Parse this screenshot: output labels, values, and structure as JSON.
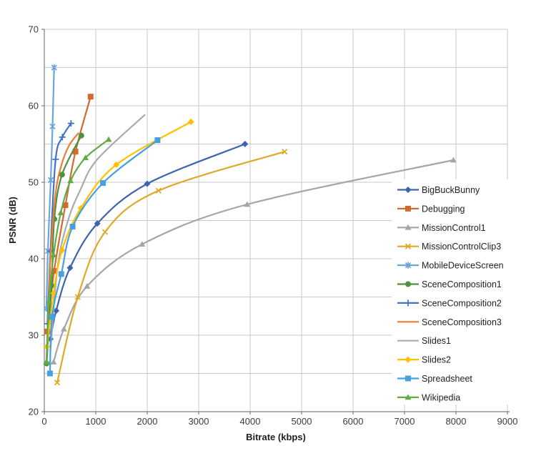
{
  "figure": {
    "background": "#ffffff",
    "grid_color": "#c9c9c9",
    "axis_color": "#7f7f7f",
    "tick_label_color": "#3b3b3b"
  },
  "chart_data": {
    "type": "line",
    "title": "",
    "xlabel": "Bitrate (kbps)",
    "ylabel": "PSNR (dB)",
    "xlim": [
      0,
      9000
    ],
    "ylim": [
      20,
      70
    ],
    "x_ticks": [
      0,
      1000,
      2000,
      3000,
      4000,
      5000,
      6000,
      7000,
      8000,
      9000
    ],
    "y_ticks": [
      20,
      30,
      40,
      50,
      60,
      70
    ],
    "x_grid_step": 1000,
    "y_grid_step": 5,
    "grid": true,
    "legend_position": "inside-right",
    "series": [
      {
        "name": "BigBuckBunny",
        "color": "#3C64AE",
        "marker": "diamond",
        "points": [
          [
            120,
            29.5
          ],
          [
            230,
            33.2
          ],
          [
            500,
            38.8
          ],
          [
            1030,
            44.6
          ],
          [
            2000,
            49.8
          ],
          [
            3900,
            55.0
          ]
        ]
      },
      {
        "name": "Debugging",
        "color": "#D2692E",
        "marker": "square",
        "points": [
          [
            60,
            30.5
          ],
          [
            190,
            38.4
          ],
          [
            410,
            47.0
          ],
          [
            605,
            54.0
          ],
          [
            900,
            61.2
          ]
        ]
      },
      {
        "name": "MissionControl1",
        "color": "#A5A5A5",
        "marker": "triangle",
        "points": [
          [
            180,
            26.5
          ],
          [
            380,
            30.8
          ],
          [
            830,
            36.4
          ],
          [
            1900,
            41.9
          ],
          [
            3940,
            47.1
          ],
          [
            7950,
            52.9
          ]
        ]
      },
      {
        "name": "MissionControlClip3",
        "color": "#DFA927",
        "marker": "x",
        "points": [
          [
            250,
            23.8
          ],
          [
            650,
            35.0
          ],
          [
            1180,
            43.5
          ],
          [
            2220,
            48.9
          ],
          [
            4670,
            54.0
          ]
        ]
      },
      {
        "name": "MobileDeviceScreen",
        "color": "#6CA5DB",
        "marker": "asterisk",
        "points": [
          [
            40,
            33.5
          ],
          [
            70,
            41.0
          ],
          [
            125,
            50.3
          ],
          [
            160,
            57.3
          ],
          [
            190,
            65.0
          ]
        ]
      },
      {
        "name": "SceneComposition1",
        "color": "#4E9140",
        "marker": "circle",
        "points": [
          [
            45,
            26.3
          ],
          [
            140,
            36.5
          ],
          [
            195,
            45.2
          ],
          [
            345,
            51.0
          ],
          [
            720,
            56.1
          ]
        ]
      },
      {
        "name": "SceneComposition2",
        "color": "#4472C4",
        "marker": "plus",
        "points": [
          [
            60,
            31.5
          ],
          [
            120,
            41.0
          ],
          [
            220,
            53.0
          ],
          [
            350,
            55.9
          ],
          [
            520,
            57.7
          ]
        ]
      },
      {
        "name": "SceneComposition3",
        "color": "#ED7D31",
        "marker": "none",
        "points": [
          [
            55,
            28.0
          ],
          [
            120,
            40.0
          ],
          [
            220,
            48.5
          ],
          [
            330,
            52.2
          ],
          [
            480,
            54.8
          ],
          [
            660,
            56.4
          ]
        ]
      },
      {
        "name": "Slides1",
        "color": "#ABABAB",
        "marker": "none",
        "points": [
          [
            120,
            28.0
          ],
          [
            260,
            39.0
          ],
          [
            460,
            45.0
          ],
          [
            700,
            49.0
          ],
          [
            1030,
            53.0
          ],
          [
            1950,
            58.8
          ]
        ]
      },
      {
        "name": "Slides2",
        "color": "#FFC000",
        "marker": "diamond",
        "points": [
          [
            50,
            28.5
          ],
          [
            180,
            35.5
          ],
          [
            345,
            41.1
          ],
          [
            710,
            46.6
          ],
          [
            1400,
            52.3
          ],
          [
            2850,
            57.9
          ]
        ]
      },
      {
        "name": "Spreadsheet",
        "color": "#45A0DC",
        "marker": "square",
        "points": [
          [
            110,
            25.0
          ],
          [
            150,
            32.4
          ],
          [
            330,
            38.0
          ],
          [
            550,
            44.2
          ],
          [
            1140,
            49.9
          ],
          [
            2200,
            55.5
          ]
        ]
      },
      {
        "name": "Wikipedia",
        "color": "#64AB45",
        "marker": "triangle",
        "points": [
          [
            40,
            26.5
          ],
          [
            90,
            34.4
          ],
          [
            180,
            40.5
          ],
          [
            320,
            46.0
          ],
          [
            510,
            50.2
          ],
          [
            800,
            53.2
          ],
          [
            1250,
            55.6
          ]
        ]
      }
    ]
  }
}
